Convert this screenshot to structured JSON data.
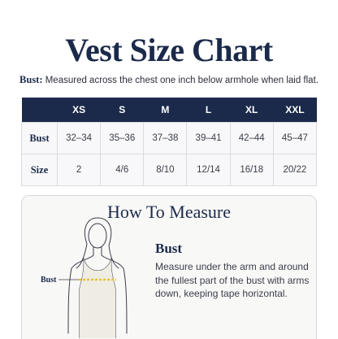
{
  "title": "Vest Size Chart",
  "note": {
    "label": "Bust:",
    "text": "Measured across the chest  one inch below armhole when laid flat."
  },
  "table": {
    "columns": [
      "XS",
      "S",
      "M",
      "L",
      "XL",
      "XXL"
    ],
    "rows": [
      {
        "label": "Bust",
        "cells": [
          "32–34",
          "35–36",
          "37–38",
          "39–41",
          "42–44",
          "45–47"
        ]
      },
      {
        "label": "Size",
        "cells": [
          "2",
          "4/6",
          "8/10",
          "12/14",
          "16/18",
          "20/22"
        ]
      }
    ]
  },
  "how_to": {
    "title": "How To Measure",
    "figure_label": "Bust",
    "heading": "Bust",
    "text": "Measure under the arm and around the fullest part of the bust with arms down, keeping tape horizontal."
  }
}
